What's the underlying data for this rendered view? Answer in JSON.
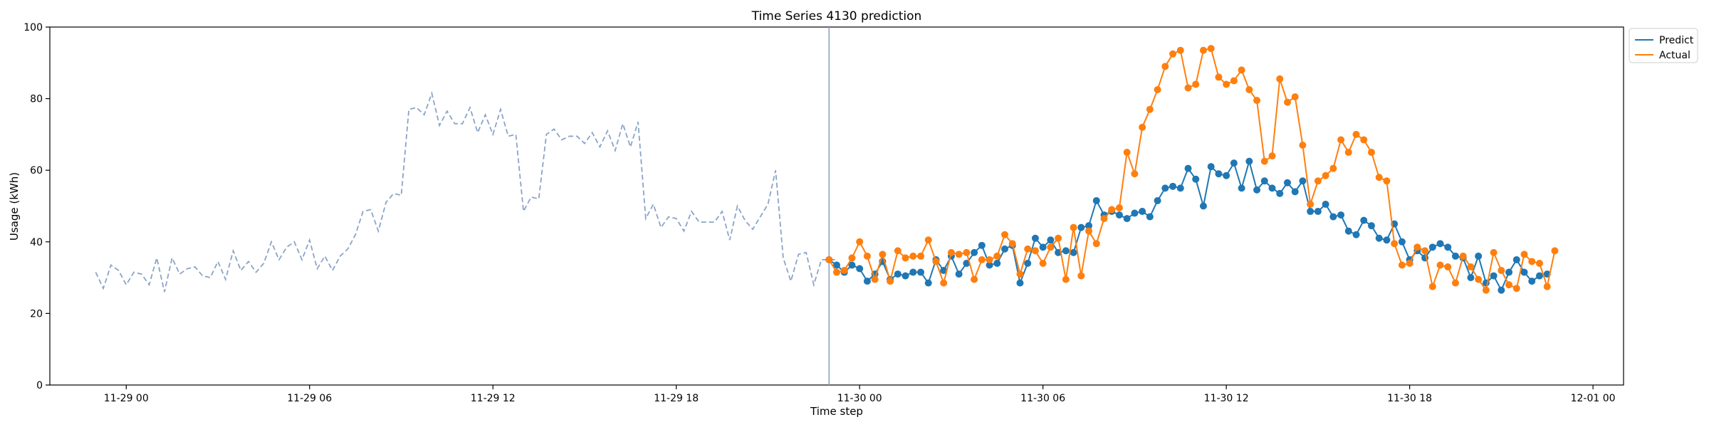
{
  "chart_data": {
    "type": "line",
    "title": "Time Series 4130 prediction",
    "xlabel": "Time step",
    "ylabel": "Usage (kWh)",
    "ylim": [
      0,
      100
    ],
    "yticks": [
      0,
      20,
      40,
      60,
      80,
      100
    ],
    "x_axis": {
      "start": "11-28 21:30",
      "end": "12-01 01:00",
      "ticks": [
        {
          "t": "11-29 00:00",
          "label": "11-29 00"
        },
        {
          "t": "11-29 06:00",
          "label": "11-29 06"
        },
        {
          "t": "11-29 12:00",
          "label": "11-29 12"
        },
        {
          "t": "11-29 18:00",
          "label": "11-29 18"
        },
        {
          "t": "11-30 00:00",
          "label": "11-30 00"
        },
        {
          "t": "11-30 06:00",
          "label": "11-30 06"
        },
        {
          "t": "11-30 12:00",
          "label": "11-30 12"
        },
        {
          "t": "11-30 18:00",
          "label": "11-30 18"
        },
        {
          "t": "12-01 00:00",
          "label": "12-01 00"
        }
      ]
    },
    "vertical_line": "11-29 23:00",
    "legend": {
      "position": "top-right",
      "outside": true
    },
    "history": {
      "start": "11-28 23:00",
      "step_minutes": 15,
      "color": "#8aa4c8",
      "style": "dashed",
      "values": [
        31.5,
        27,
        33.5,
        32,
        28,
        31.5,
        31,
        28,
        35.5,
        26,
        35.5,
        31,
        32.5,
        33,
        30.5,
        30,
        34.5,
        29.5,
        37.5,
        32,
        34.5,
        31.5,
        34,
        40,
        35,
        38.5,
        40,
        35,
        40.5,
        32.5,
        36,
        32,
        36,
        38,
        42,
        48.5,
        49,
        43,
        51,
        53.5,
        53,
        77,
        77.5,
        75.5,
        81.5,
        72.5,
        76.5,
        73,
        73,
        77.5,
        70.5,
        75.5,
        70,
        77,
        69.5,
        70,
        48.5,
        52.5,
        52,
        70,
        71.5,
        68.5,
        69.5,
        69.5,
        67.5,
        70.5,
        66.5,
        71,
        65.5,
        73,
        66.5,
        73.5,
        46.5,
        50.5,
        44,
        47,
        46.5,
        43,
        48.5,
        45.5,
        45.5,
        45.5,
        48.5,
        40.5,
        50,
        46,
        43.5,
        47,
        50.5,
        60,
        35.5,
        29,
        36.5,
        37,
        28,
        35,
        35,
        35
      ]
    },
    "series": [
      {
        "name": "Predict",
        "color": "#1f77b4",
        "start": "11-29 23:00",
        "step_minutes": 15,
        "values": [
          35,
          33.5,
          31.5,
          33.5,
          32.5,
          29,
          31,
          34.5,
          29.5,
          31,
          30.5,
          31.5,
          31.5,
          28.5,
          35,
          32,
          36,
          31,
          34,
          37,
          39,
          33.5,
          34,
          38,
          39,
          28.5,
          34,
          41,
          38.5,
          40.5,
          37,
          37.5,
          37,
          44,
          44.5,
          51.5,
          47.5,
          48.5,
          47.5,
          46.5,
          48,
          48.5,
          47,
          51.5,
          55,
          55.5,
          55,
          60.5,
          57.5,
          50,
          61,
          59,
          58.5,
          62,
          55,
          62.5,
          54.5,
          57,
          55,
          53.5,
          56.5,
          54,
          57,
          48.5,
          48.5,
          50.5,
          47,
          47.5,
          43,
          42,
          46,
          44.5,
          41,
          40.5,
          45,
          40,
          35,
          37.5,
          35.5,
          38.5,
          39.5,
          38.5,
          36,
          35.5,
          30,
          36,
          28.5,
          30.5,
          26.5,
          31.5,
          35,
          31.5,
          29,
          30.5,
          31
        ]
      },
      {
        "name": "Actual",
        "color": "#ff7f0e",
        "start": "11-29 23:00",
        "step_minutes": 15,
        "values": [
          35,
          31.5,
          32,
          35.5,
          40,
          36,
          29.5,
          36.5,
          29,
          37.5,
          35.5,
          36,
          36,
          40.5,
          34.5,
          28.5,
          37,
          36.5,
          37,
          29.5,
          35,
          35,
          36,
          42,
          39.5,
          31,
          38,
          37.5,
          34,
          38.5,
          41,
          29.5,
          44,
          30.5,
          43,
          39.5,
          46.5,
          49,
          49.5,
          65,
          59,
          72,
          77,
          82.5,
          89,
          92.5,
          93.5,
          83,
          84,
          93.5,
          94,
          86,
          84,
          85,
          88,
          82.5,
          79.5,
          62.5,
          64,
          85.5,
          79,
          80.5,
          67,
          50.5,
          57,
          58.5,
          60.5,
          68.5,
          65,
          70,
          68.5,
          65,
          58,
          57,
          39.5,
          33.5,
          34,
          38.5,
          37.5,
          27.5,
          33.5,
          33,
          28.5,
          36,
          33,
          29.5,
          26.5,
          37,
          32,
          28,
          27,
          36.5,
          34.5,
          34,
          27.5,
          37.5
        ]
      }
    ]
  }
}
